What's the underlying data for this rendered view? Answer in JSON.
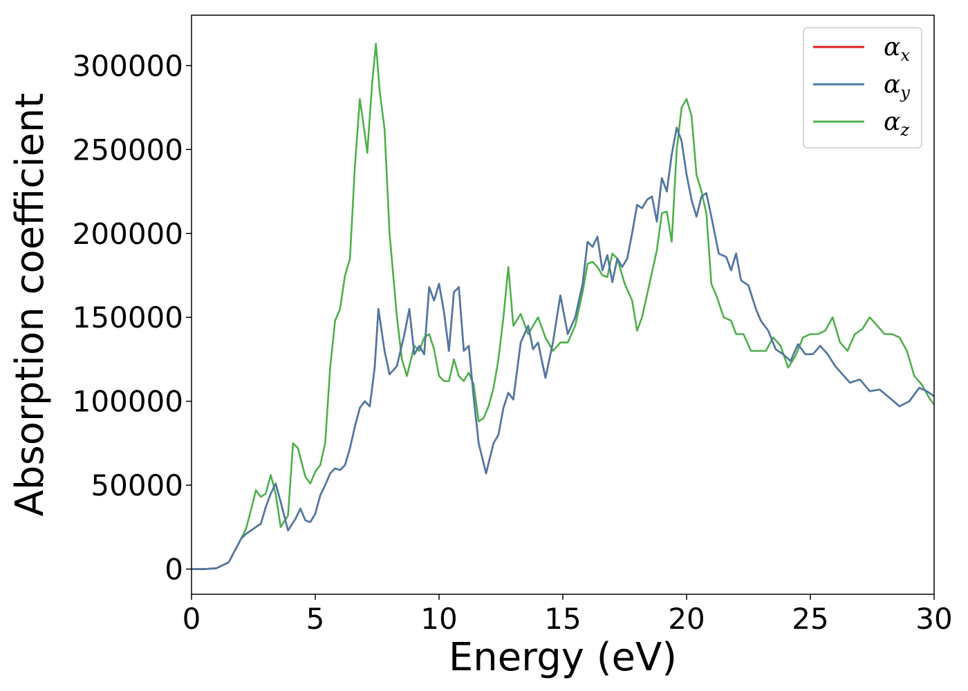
{
  "chart_data": {
    "type": "line",
    "xlabel": "Energy (eV)",
    "ylabel": "Absorption coefficient",
    "xlim": [
      0,
      30
    ],
    "ylim": [
      -15000,
      330000
    ],
    "x_ticks": [
      0,
      5,
      10,
      15,
      20,
      25,
      30
    ],
    "x_tick_labels": [
      "0",
      "5",
      "10",
      "15",
      "20",
      "25",
      "30"
    ],
    "y_ticks": [
      0,
      50000,
      100000,
      150000,
      200000,
      250000,
      300000
    ],
    "y_tick_labels": [
      "0",
      "50000",
      "100000",
      "150000",
      "200000",
      "250000",
      "300000"
    ],
    "grid": false,
    "legend_position": "top-right",
    "series": [
      {
        "name": "α",
        "subscript": "x",
        "color": "#e41a1c",
        "x": [
          0,
          0.5,
          1.0,
          1.5,
          2.0,
          2.2,
          2.5,
          2.8,
          3.0,
          3.2,
          3.4,
          3.6,
          3.9,
          4.2,
          4.4,
          4.6,
          4.8,
          5.0,
          5.2,
          5.4,
          5.6,
          5.8,
          6.0,
          6.2,
          6.4,
          6.6,
          6.8,
          7.0,
          7.2,
          7.4,
          7.55,
          7.8,
          8.0,
          8.3,
          8.6,
          8.8,
          9.0,
          9.2,
          9.4,
          9.6,
          9.8,
          10.0,
          10.2,
          10.4,
          10.6,
          10.8,
          11.0,
          11.2,
          11.4,
          11.6,
          11.9,
          12.2,
          12.4,
          12.6,
          12.8,
          13.0,
          13.3,
          13.6,
          13.8,
          14.0,
          14.3,
          14.6,
          14.9,
          15.2,
          15.5,
          15.8,
          16.0,
          16.2,
          16.4,
          16.6,
          16.8,
          17.0,
          17.2,
          17.4,
          17.6,
          17.8,
          18.0,
          18.2,
          18.4,
          18.6,
          18.8,
          19.0,
          19.2,
          19.4,
          19.6,
          19.8,
          20.0,
          20.2,
          20.4,
          20.6,
          20.8,
          21.0,
          21.3,
          21.6,
          21.8,
          22.0,
          22.2,
          22.5,
          22.8,
          23.0,
          23.3,
          23.6,
          23.9,
          24.2,
          24.5,
          24.8,
          25.1,
          25.4,
          25.7,
          26.0,
          26.3,
          26.6,
          27.0,
          27.4,
          27.8,
          28.2,
          28.6,
          29.0,
          29.4,
          29.7,
          30.0
        ],
        "y": [
          0,
          0,
          500,
          4000,
          18000,
          21000,
          24000,
          27000,
          37000,
          45000,
          51000,
          40000,
          23000,
          30000,
          36000,
          29000,
          28000,
          33000,
          44000,
          50000,
          57000,
          60000,
          59000,
          62000,
          72000,
          85000,
          96000,
          100000,
          97000,
          120000,
          155000,
          130000,
          116000,
          121000,
          140000,
          155000,
          128000,
          133000,
          128000,
          168000,
          160000,
          170000,
          153000,
          130000,
          165000,
          168000,
          130000,
          133000,
          102000,
          75000,
          57000,
          75000,
          80000,
          96000,
          105000,
          101000,
          135000,
          145000,
          131000,
          135000,
          114000,
          135000,
          163000,
          140000,
          150000,
          170000,
          195000,
          192000,
          198000,
          178000,
          187000,
          171000,
          185000,
          180000,
          185000,
          200000,
          217000,
          215000,
          220000,
          222000,
          207000,
          233000,
          225000,
          247000,
          263000,
          255000,
          235000,
          220000,
          210000,
          222000,
          224000,
          210000,
          188000,
          186000,
          178000,
          188000,
          172000,
          169000,
          155000,
          148000,
          142000,
          131000,
          128000,
          124000,
          134000,
          128000,
          128000,
          133000,
          128000,
          121000,
          116000,
          111000,
          113000,
          106000,
          107000,
          102000,
          97000,
          100000,
          108000,
          106000,
          103000
        ]
      },
      {
        "name": "α",
        "subscript": "y",
        "color": "#4a7aa8",
        "x": [
          0,
          0.5,
          1.0,
          1.5,
          2.0,
          2.2,
          2.5,
          2.8,
          3.0,
          3.2,
          3.4,
          3.6,
          3.9,
          4.2,
          4.4,
          4.6,
          4.8,
          5.0,
          5.2,
          5.4,
          5.6,
          5.8,
          6.0,
          6.2,
          6.4,
          6.6,
          6.8,
          7.0,
          7.2,
          7.4,
          7.55,
          7.8,
          8.0,
          8.3,
          8.6,
          8.8,
          9.0,
          9.2,
          9.4,
          9.6,
          9.8,
          10.0,
          10.2,
          10.4,
          10.6,
          10.8,
          11.0,
          11.2,
          11.4,
          11.6,
          11.9,
          12.2,
          12.4,
          12.6,
          12.8,
          13.0,
          13.3,
          13.6,
          13.8,
          14.0,
          14.3,
          14.6,
          14.9,
          15.2,
          15.5,
          15.8,
          16.0,
          16.2,
          16.4,
          16.6,
          16.8,
          17.0,
          17.2,
          17.4,
          17.6,
          17.8,
          18.0,
          18.2,
          18.4,
          18.6,
          18.8,
          19.0,
          19.2,
          19.4,
          19.6,
          19.8,
          20.0,
          20.2,
          20.4,
          20.6,
          20.8,
          21.0,
          21.3,
          21.6,
          21.8,
          22.0,
          22.2,
          22.5,
          22.8,
          23.0,
          23.3,
          23.6,
          23.9,
          24.2,
          24.5,
          24.8,
          25.1,
          25.4,
          25.7,
          26.0,
          26.3,
          26.6,
          27.0,
          27.4,
          27.8,
          28.2,
          28.6,
          29.0,
          29.4,
          29.7,
          30.0
        ],
        "y": [
          0,
          0,
          500,
          4000,
          18000,
          21000,
          24000,
          27000,
          37000,
          45000,
          51000,
          40000,
          23000,
          30000,
          36000,
          29000,
          28000,
          33000,
          44000,
          50000,
          57000,
          60000,
          59000,
          62000,
          72000,
          85000,
          96000,
          100000,
          97000,
          120000,
          155000,
          130000,
          116000,
          121000,
          140000,
          155000,
          128000,
          133000,
          128000,
          168000,
          160000,
          170000,
          153000,
          130000,
          165000,
          168000,
          130000,
          133000,
          102000,
          75000,
          57000,
          75000,
          80000,
          96000,
          105000,
          101000,
          135000,
          145000,
          131000,
          135000,
          114000,
          135000,
          163000,
          140000,
          150000,
          170000,
          195000,
          192000,
          198000,
          178000,
          187000,
          171000,
          185000,
          180000,
          185000,
          200000,
          217000,
          215000,
          220000,
          222000,
          207000,
          233000,
          225000,
          247000,
          263000,
          255000,
          235000,
          220000,
          210000,
          222000,
          224000,
          210000,
          188000,
          186000,
          178000,
          188000,
          172000,
          169000,
          155000,
          148000,
          142000,
          131000,
          128000,
          124000,
          134000,
          128000,
          128000,
          133000,
          128000,
          121000,
          116000,
          111000,
          113000,
          106000,
          107000,
          102000,
          97000,
          100000,
          108000,
          106000,
          103000
        ]
      },
      {
        "name": "α",
        "subscript": "z",
        "color": "#4daf4a",
        "x": [
          0,
          0.5,
          1.0,
          1.5,
          2.0,
          2.2,
          2.4,
          2.6,
          2.8,
          3.0,
          3.2,
          3.4,
          3.6,
          3.9,
          4.1,
          4.3,
          4.6,
          4.8,
          5.0,
          5.2,
          5.4,
          5.6,
          5.8,
          6.0,
          6.2,
          6.4,
          6.6,
          6.8,
          6.9,
          7.1,
          7.3,
          7.45,
          7.6,
          7.8,
          8.0,
          8.3,
          8.5,
          8.7,
          9.0,
          9.2,
          9.4,
          9.6,
          9.8,
          10.0,
          10.2,
          10.4,
          10.6,
          10.8,
          11.0,
          11.2,
          11.4,
          11.6,
          11.8,
          12.0,
          12.2,
          12.4,
          12.6,
          12.8,
          13.0,
          13.3,
          13.6,
          13.8,
          14.0,
          14.3,
          14.6,
          14.9,
          15.2,
          15.5,
          15.8,
          16.0,
          16.2,
          16.4,
          16.6,
          16.8,
          17.0,
          17.2,
          17.5,
          17.8,
          18.0,
          18.2,
          18.5,
          18.8,
          19.0,
          19.2,
          19.4,
          19.6,
          19.8,
          20.0,
          20.2,
          20.4,
          20.6,
          20.8,
          21.0,
          21.2,
          21.5,
          21.8,
          22.0,
          22.3,
          22.6,
          22.9,
          23.2,
          23.5,
          23.8,
          24.1,
          24.4,
          24.7,
          25.0,
          25.3,
          25.6,
          25.9,
          26.2,
          26.5,
          26.8,
          27.1,
          27.4,
          27.7,
          28.0,
          28.3,
          28.6,
          28.9,
          29.2,
          29.5,
          29.8,
          30.0
        ],
        "y": [
          0,
          0,
          500,
          4000,
          18000,
          24000,
          35000,
          47000,
          43000,
          45000,
          56000,
          45000,
          25000,
          32000,
          75000,
          72000,
          55000,
          51000,
          58000,
          62000,
          75000,
          120000,
          148000,
          155000,
          175000,
          185000,
          240000,
          280000,
          270000,
          248000,
          290000,
          313000,
          285000,
          262000,
          200000,
          150000,
          125000,
          115000,
          133000,
          130000,
          138000,
          140000,
          131000,
          115000,
          112000,
          112000,
          125000,
          115000,
          112000,
          117000,
          110000,
          88000,
          90000,
          97000,
          108000,
          125000,
          150000,
          180000,
          145000,
          152000,
          140000,
          145000,
          150000,
          138000,
          130000,
          135000,
          135000,
          145000,
          165000,
          182000,
          183000,
          180000,
          175000,
          174000,
          188000,
          185000,
          170000,
          160000,
          142000,
          150000,
          170000,
          190000,
          212000,
          213000,
          195000,
          250000,
          275000,
          280000,
          270000,
          235000,
          225000,
          212000,
          170000,
          163000,
          150000,
          148000,
          140000,
          140000,
          130000,
          130000,
          130000,
          138000,
          133000,
          120000,
          127000,
          138000,
          140000,
          140000,
          142000,
          150000,
          135000,
          130000,
          140000,
          143000,
          150000,
          145000,
          140000,
          140000,
          138000,
          130000,
          115000,
          110000,
          102000,
          98000
        ]
      }
    ]
  }
}
